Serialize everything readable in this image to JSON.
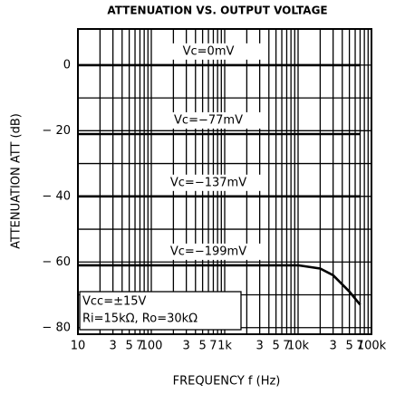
{
  "chart_data": {
    "type": "line",
    "title": "ATTENUATION VS. OUTPUT VOLTAGE",
    "x_label": "FREQUENCY  f (Hz)",
    "y_label": "ATTENUATION ATT (dB)",
    "x_scale": "log",
    "x": [
      10,
      100,
      1000,
      10000,
      20000,
      30000,
      50000,
      70000
    ],
    "series": [
      {
        "name": "Vc=0mV",
        "color": "#000000",
        "values": [
          0,
          0,
          0,
          0,
          0,
          0,
          0,
          0
        ]
      },
      {
        "name": "Vc=−77mV",
        "color": "#000000",
        "values": [
          -21,
          -21,
          -21,
          -21,
          -21,
          -21,
          -21,
          -21
        ]
      },
      {
        "name": "Vc=−137mV",
        "color": "#000000",
        "values": [
          -40,
          -40,
          -40,
          -40,
          -40,
          -40,
          -40,
          -40
        ]
      },
      {
        "name": "Vc=−199mV",
        "color": "#000000",
        "values": [
          -61,
          -61,
          -61,
          -61,
          -62,
          -64,
          -69,
          -73
        ]
      }
    ],
    "note": [
      "Vcc=±15V",
      "Ri=15kΩ, Ro=30kΩ"
    ],
    "xlim": [
      10,
      100000
    ],
    "ylim": [
      -82,
      11
    ],
    "xticks": [
      10,
      {
        "value": 30,
        "label": "3"
      },
      {
        "value": 50,
        "label": "5"
      },
      {
        "value": 70,
        "label": "7"
      },
      100,
      {
        "value": 300,
        "label": "3"
      },
      {
        "value": 500,
        "label": "5"
      },
      {
        "value": 700,
        "label": "7"
      },
      {
        "value": 1000,
        "label": "1k"
      },
      {
        "value": 3000,
        "label": "3"
      },
      {
        "value": 5000,
        "label": "5"
      },
      {
        "value": 7000,
        "label": "7"
      },
      {
        "value": 10000,
        "label": "10k"
      },
      {
        "value": 30000,
        "label": "3"
      },
      {
        "value": 50000,
        "label": "5"
      },
      {
        "value": 70000,
        "label": "7"
      },
      {
        "value": 100000,
        "label": "100k"
      }
    ],
    "xgrid_minor": [
      20,
      40,
      60,
      80,
      90,
      200,
      400,
      600,
      800,
      900,
      2000,
      4000,
      6000,
      8000,
      9000,
      20000,
      40000,
      60000,
      80000,
      90000
    ],
    "yticks": [
      0,
      {
        "value": -20,
        "label": "− 20"
      },
      {
        "value": -40,
        "label": "− 40"
      },
      {
        "value": -60,
        "label": "− 60"
      },
      {
        "value": -80,
        "label": "− 80"
      }
    ],
    "ygrid_minor": [
      -70,
      -50,
      -30,
      -10
    ],
    "grid": true
  }
}
